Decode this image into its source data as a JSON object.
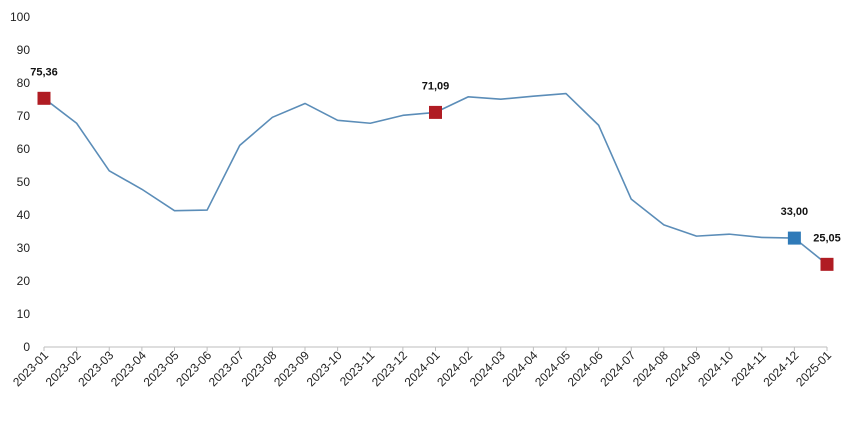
{
  "chart_data": {
    "type": "line",
    "title": "",
    "xlabel": "",
    "ylabel": "",
    "ylim": [
      0,
      100
    ],
    "y_ticks": [
      0,
      10,
      20,
      30,
      40,
      50,
      60,
      70,
      80,
      90,
      100
    ],
    "grid": false,
    "categories": [
      "2023-01",
      "2023-02",
      "2023-03",
      "2023-04",
      "2023-05",
      "2023-06",
      "2023-07",
      "2023-08",
      "2023-09",
      "2023-10",
      "2023-11",
      "2023-12",
      "2024-01",
      "2024-02",
      "2024-03",
      "2024-04",
      "2024-05",
      "2024-06",
      "2024-07",
      "2024-08",
      "2024-09",
      "2024-10",
      "2024-11",
      "2024-12",
      "2025-01"
    ],
    "series": [
      {
        "values": [
          75.36,
          67.8,
          53.4,
          47.8,
          41.3,
          41.5,
          61.1,
          69.6,
          73.8,
          68.7,
          67.8,
          70.2,
          71.09,
          75.8,
          75.1,
          76.0,
          76.8,
          67.2,
          44.8,
          37.0,
          33.6,
          34.2,
          33.2,
          33.0,
          25.05
        ],
        "color": "#5b8db8"
      }
    ],
    "highlighted_points": [
      {
        "index": 0,
        "label": "75,36",
        "color": "#b01c23"
      },
      {
        "index": 12,
        "label": "71,09",
        "color": "#b01c23"
      },
      {
        "index": 23,
        "label": "33,00",
        "color": "#2f7ab8"
      },
      {
        "index": 24,
        "label": "25,05",
        "color": "#b01c23"
      }
    ]
  }
}
